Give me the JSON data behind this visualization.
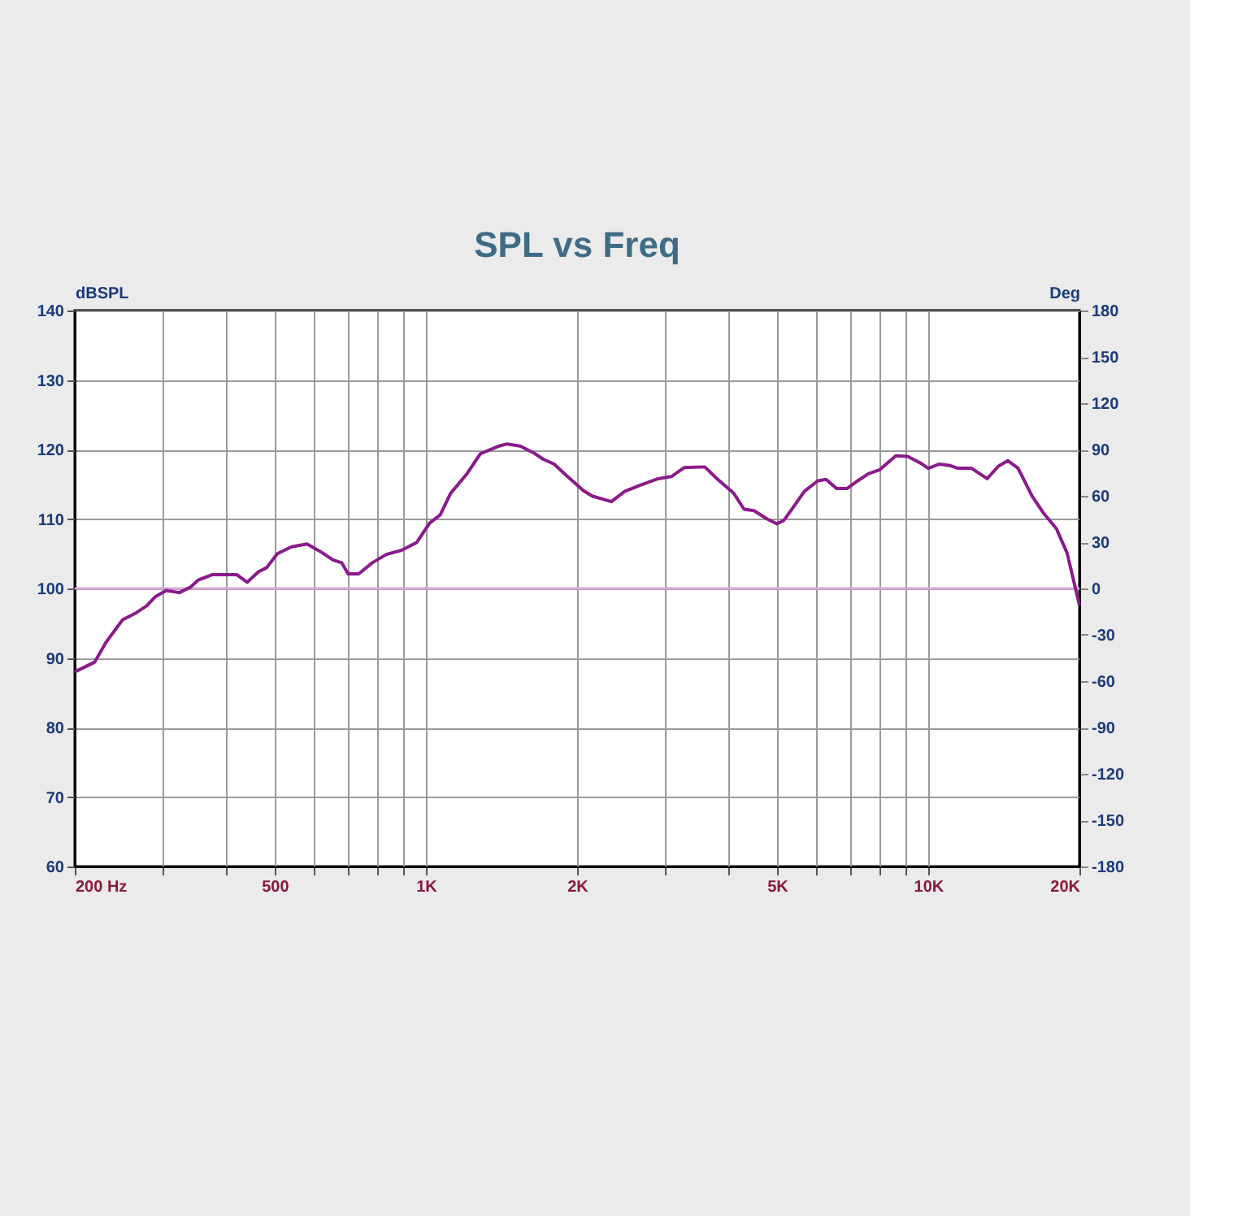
{
  "chart_data": {
    "type": "line",
    "title": "SPL vs Freq",
    "ylabel": "dBSPL",
    "y2label": "Deg",
    "log": "x",
    "grid": true,
    "marker": "none",
    "line_style": "solid",
    "x": [
      200,
      219,
      231,
      249,
      265,
      278,
      289,
      304,
      323,
      340,
      352,
      376,
      420,
      441,
      464,
      482,
      506,
      540,
      580,
      617,
      653,
      680,
      700,
      735,
      782,
      834,
      894,
      958,
      1017,
      1068,
      1120,
      1207,
      1284,
      1400,
      1450,
      1540,
      1640,
      1713,
      1800,
      1908,
      2058,
      2143,
      2340,
      2490,
      2680,
      2900,
      3080,
      3270,
      3590,
      3810,
      4100,
      4300,
      4500,
      4780,
      5000,
      5160,
      5400,
      5670,
      6030,
      6260,
      6570,
      6900,
      7240,
      7600,
      8010,
      8620,
      9100,
      9680,
      10000,
      10530,
      11040,
      11450,
      12200,
      13100,
      13800,
      14400,
      15100,
      16100,
      16900,
      18000,
      18900,
      20000
    ],
    "series": [
      {
        "color": "#8b1a8b",
        "values": [
          88.0,
          89.4,
          92.3,
          95.5,
          96.5,
          97.5,
          98.8,
          99.7,
          99.4,
          100.2,
          101.2,
          102.0,
          102.0,
          100.9,
          102.4,
          103.0,
          105.0,
          106.0,
          106.4,
          105.3,
          104.1,
          103.7,
          102.1,
          102.1,
          103.7,
          104.9,
          105.5,
          106.6,
          109.4,
          110.6,
          113.7,
          116.5,
          119.4,
          120.5,
          120.8,
          120.5,
          119.5,
          118.6,
          117.9,
          116.2,
          114.1,
          113.3,
          112.5,
          114.0,
          114.9,
          115.8,
          116.1,
          117.4,
          117.5,
          115.7,
          113.7,
          111.4,
          111.2,
          110.0,
          109.3,
          109.8,
          111.8,
          114.0,
          115.5,
          115.7,
          114.4,
          114.4,
          115.5,
          116.5,
          117.1,
          119.1,
          119.0,
          118.0,
          117.3,
          117.9,
          117.7,
          117.3,
          117.3,
          115.8,
          117.6,
          118.4,
          117.3,
          113.3,
          111.0,
          108.6,
          105.1,
          97.6
        ]
      }
    ],
    "xlim": [
      200,
      20000
    ],
    "xticks": [
      {
        "value": 200,
        "label": "200 Hz"
      },
      {
        "value": 300,
        "label": null
      },
      {
        "value": 400,
        "label": null
      },
      500,
      {
        "value": 600,
        "label": null
      },
      {
        "value": 700,
        "label": null
      },
      {
        "value": 800,
        "label": null
      },
      {
        "value": 900,
        "label": null
      },
      {
        "value": 1000,
        "label": "1K"
      },
      {
        "value": 2000,
        "label": "2K"
      },
      {
        "value": 3000,
        "label": null
      },
      {
        "value": 4000,
        "label": null
      },
      {
        "value": 5000,
        "label": "5K"
      },
      {
        "value": 6000,
        "label": null
      },
      {
        "value": 7000,
        "label": null
      },
      {
        "value": 8000,
        "label": null
      },
      {
        "value": 9000,
        "label": null
      },
      {
        "value": 10000,
        "label": "10K"
      },
      {
        "value": 20000,
        "label": "20K"
      }
    ],
    "ylim": [
      60,
      140
    ],
    "yticks": [
      60,
      70,
      80,
      90,
      100,
      110,
      120,
      130,
      140
    ],
    "y2lim": [
      -180,
      180
    ],
    "y2ticks": [
      -180,
      -150,
      -120,
      -90,
      -60,
      -30,
      0,
      30,
      60,
      90,
      120,
      150,
      180
    ],
    "ref_lines": [
      {
        "axis": "y2",
        "value": 0,
        "color": "#d9a6d9"
      }
    ]
  }
}
